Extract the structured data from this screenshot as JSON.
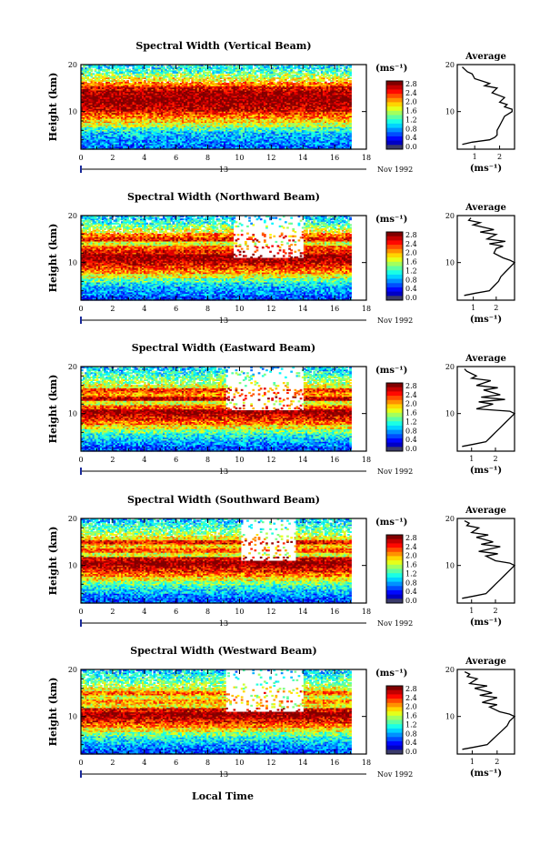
{
  "figure": {
    "xlabel": "Local Time",
    "date_label": "Nov 1992",
    "date_day": "13",
    "colorbar_unit": "(ms⁻¹)",
    "avg_title": "Average",
    "avg_xlabel": "(ms⁻¹)"
  },
  "chart_data": [
    {
      "type": "heatmap",
      "title": "Spectral Width (Vertical Beam)",
      "ylabel": "Height (km)",
      "yticks": [
        "20",
        "10"
      ],
      "xticks": [
        "0",
        "2",
        "4",
        "6",
        "8",
        "10",
        "12",
        "14",
        "16",
        "18"
      ],
      "xlim": [
        0,
        18
      ],
      "ylim": [
        2,
        20
      ],
      "colorbar_ticks": [
        "2.8",
        "2.4",
        "2.0",
        "1.6",
        "1.2",
        "0.8",
        "0.4",
        "0.0"
      ],
      "data_span": [
        0,
        17
      ],
      "profile": [
        0.7,
        0.8,
        0.9,
        1.0,
        1.3,
        1.7,
        2.0,
        2.3,
        2.5,
        2.8,
        2.9,
        3.0,
        3.0,
        2.9,
        2.7,
        2.3,
        1.9,
        1.6,
        1.3,
        1.1
      ],
      "gaps": [],
      "gap_level": 0,
      "average": {
        "xticks": [
          "1",
          "2"
        ],
        "xlim": [
          0.3,
          2.6
        ],
        "yticks": [
          "20",
          "10"
        ],
        "ylim": [
          2,
          20
        ],
        "height": [
          3.0,
          3.5,
          4.0,
          4.5,
          5.0,
          6.0,
          7.0,
          8.0,
          9.0,
          10.0,
          10.5,
          11.0,
          11.5,
          12.0,
          13.0,
          14.0,
          15.0,
          15.5,
          16.0,
          17.0,
          18.0,
          18.5,
          19.0,
          19.5
        ],
        "width": [
          0.5,
          0.9,
          1.6,
          1.8,
          1.9,
          1.9,
          2.0,
          2.1,
          2.2,
          2.5,
          2.5,
          2.2,
          2.3,
          2.0,
          2.2,
          1.7,
          1.9,
          1.4,
          1.6,
          1.0,
          0.9,
          0.7,
          0.6,
          0.5
        ]
      }
    },
    {
      "type": "heatmap",
      "title": "Spectral Width (Northward Beam)",
      "ylabel": "Height (km)",
      "yticks": [
        "20",
        "10"
      ],
      "xticks": [
        "0",
        "2",
        "4",
        "6",
        "8",
        "10",
        "12",
        "14",
        "16",
        "18"
      ],
      "xlim": [
        0,
        18
      ],
      "ylim": [
        2,
        20
      ],
      "colorbar_ticks": [
        "2.8",
        "2.4",
        "2.0",
        "1.6",
        "1.2",
        "0.8",
        "0.4",
        "0.0"
      ],
      "data_span": [
        0,
        17
      ],
      "profile": [
        0.6,
        0.8,
        0.9,
        1.1,
        1.4,
        1.8,
        2.2,
        2.5,
        2.7,
        2.9,
        3.0,
        2.6,
        2.4,
        1.8,
        2.6,
        2.3,
        1.8,
        1.5,
        1.2,
        1.0
      ],
      "gaps": [
        [
          9.5,
          14.0,
          11.0
        ]
      ],
      "gap_level": 1,
      "average": {
        "xticks": [
          "1",
          "2"
        ],
        "xlim": [
          0.3,
          2.8
        ],
        "yticks": [
          "20",
          "10"
        ],
        "ylim": [
          2,
          20
        ],
        "height": [
          3.0,
          3.5,
          4.0,
          5.0,
          6.0,
          7.0,
          8.0,
          9.0,
          10.0,
          10.5,
          11.0,
          12.0,
          13.0,
          13.5,
          14.0,
          14.5,
          15.0,
          16.0,
          16.5,
          17.0,
          18.0,
          18.5,
          19.0,
          19.5
        ],
        "width": [
          0.6,
          1.1,
          1.7,
          1.9,
          2.1,
          2.2,
          2.4,
          2.6,
          2.8,
          2.6,
          2.3,
          1.9,
          2.0,
          2.3,
          1.7,
          2.4,
          1.6,
          2.0,
          1.3,
          1.9,
          1.0,
          1.3,
          0.8,
          0.9
        ]
      }
    },
    {
      "type": "heatmap",
      "title": "Spectral Width (Eastward Beam)",
      "ylabel": "Height (km)",
      "yticks": [
        "20",
        "10"
      ],
      "xticks": [
        "0",
        "2",
        "4",
        "6",
        "8",
        "10",
        "12",
        "14",
        "16",
        "18"
      ],
      "xlim": [
        0,
        18
      ],
      "ylim": [
        2,
        20
      ],
      "colorbar_ticks": [
        "2.8",
        "2.4",
        "2.0",
        "1.6",
        "1.2",
        "0.8",
        "0.4",
        "0.0"
      ],
      "data_span": [
        0,
        17
      ],
      "profile": [
        0.6,
        0.8,
        1.0,
        1.2,
        1.5,
        1.9,
        2.3,
        2.6,
        2.8,
        3.0,
        2.4,
        1.8,
        2.8,
        2.2,
        2.5,
        1.8,
        1.6,
        1.4,
        1.2,
        1.0
      ],
      "gaps": [
        [
          9.0,
          14.0,
          10.5
        ]
      ],
      "gap_level": 1,
      "average": {
        "xticks": [
          "1",
          "2"
        ],
        "xlim": [
          0.4,
          2.8
        ],
        "yticks": [
          "20",
          "10"
        ],
        "ylim": [
          2,
          20
        ],
        "height": [
          3.0,
          3.5,
          4.0,
          5.0,
          6.0,
          7.0,
          8.0,
          9.0,
          10.0,
          10.5,
          11.0,
          12.0,
          12.5,
          13.0,
          13.5,
          14.0,
          15.0,
          15.5,
          16.0,
          17.0,
          17.5,
          18.0,
          19.0,
          19.5
        ],
        "width": [
          0.6,
          1.1,
          1.6,
          1.8,
          2.0,
          2.2,
          2.4,
          2.6,
          2.8,
          2.6,
          1.2,
          1.9,
          1.3,
          2.4,
          1.4,
          2.2,
          1.5,
          2.1,
          1.2,
          1.8,
          1.0,
          1.2,
          0.8,
          0.7
        ]
      }
    },
    {
      "type": "heatmap",
      "title": "Spectral Width (Southward Beam)",
      "ylabel": "Height (km)",
      "yticks": [
        "20",
        "10"
      ],
      "xticks": [
        "0",
        "2",
        "4",
        "6",
        "8",
        "10",
        "12",
        "14",
        "16",
        "18"
      ],
      "xlim": [
        0,
        18
      ],
      "ylim": [
        2,
        20
      ],
      "colorbar_ticks": [
        "2.8",
        "2.4",
        "2.0",
        "1.6",
        "1.2",
        "0.8",
        "0.4",
        "0.0"
      ],
      "data_span": [
        0,
        17
      ],
      "profile": [
        0.6,
        0.8,
        1.0,
        1.2,
        1.5,
        1.9,
        2.3,
        2.6,
        2.8,
        3.0,
        2.8,
        1.8,
        2.4,
        2.0,
        2.6,
        1.9,
        1.6,
        1.4,
        1.2,
        1.0
      ],
      "gaps": [
        [
          10.0,
          13.5,
          11.0
        ]
      ],
      "gap_level": 1,
      "average": {
        "xticks": [
          "1",
          "2"
        ],
        "xlim": [
          0.4,
          2.8
        ],
        "yticks": [
          "20",
          "10"
        ],
        "ylim": [
          2,
          20
        ],
        "height": [
          3.0,
          3.5,
          4.0,
          5.0,
          6.0,
          7.0,
          8.0,
          9.0,
          10.0,
          10.5,
          11.0,
          12.0,
          12.5,
          13.0,
          14.0,
          14.5,
          15.0,
          16.0,
          16.5,
          17.0,
          18.0,
          18.5,
          19.0,
          19.5
        ],
        "width": [
          0.6,
          1.1,
          1.6,
          1.8,
          2.0,
          2.2,
          2.4,
          2.6,
          2.8,
          2.6,
          2.0,
          1.6,
          2.1,
          1.3,
          2.2,
          1.4,
          1.9,
          1.2,
          1.7,
          1.0,
          1.3,
          0.8,
          0.9,
          0.7
        ]
      }
    },
    {
      "type": "heatmap",
      "title": "Spectral Width (Westward Beam)",
      "ylabel": "Height (km)",
      "yticks": [
        "20",
        "10"
      ],
      "xticks": [
        "0",
        "2",
        "4",
        "6",
        "8",
        "10",
        "12",
        "14",
        "16",
        "18"
      ],
      "xlim": [
        0,
        18
      ],
      "ylim": [
        2,
        20
      ],
      "colorbar_ticks": [
        "2.8",
        "2.4",
        "2.0",
        "1.6",
        "1.2",
        "0.8",
        "0.4",
        "0.0"
      ],
      "data_span": [
        0,
        17
      ],
      "profile": [
        0.6,
        0.8,
        1.0,
        1.2,
        1.5,
        1.9,
        2.3,
        2.6,
        2.8,
        3.0,
        2.7,
        1.9,
        2.2,
        1.8,
        2.3,
        1.8,
        1.6,
        1.4,
        1.2,
        1.0
      ],
      "gaps": [
        [
          9.0,
          14.0,
          11.0
        ]
      ],
      "gap_level": 1,
      "average": {
        "xticks": [
          "1",
          "2"
        ],
        "xlim": [
          0.4,
          2.7
        ],
        "yticks": [
          "20",
          "10"
        ],
        "ylim": [
          2,
          20
        ],
        "height": [
          3.0,
          3.5,
          4.0,
          5.0,
          6.0,
          7.0,
          8.0,
          9.0,
          10.0,
          10.5,
          11.0,
          12.0,
          12.5,
          13.0,
          14.0,
          14.5,
          15.0,
          16.0,
          16.5,
          17.0,
          18.0,
          18.5,
          19.0,
          19.5
        ],
        "width": [
          0.6,
          1.1,
          1.6,
          1.8,
          2.0,
          2.2,
          2.4,
          2.5,
          2.7,
          2.5,
          2.1,
          1.7,
          2.0,
          1.4,
          2.0,
          1.3,
          1.8,
          1.1,
          1.6,
          0.9,
          1.2,
          0.8,
          0.9,
          0.7
        ]
      }
    }
  ]
}
